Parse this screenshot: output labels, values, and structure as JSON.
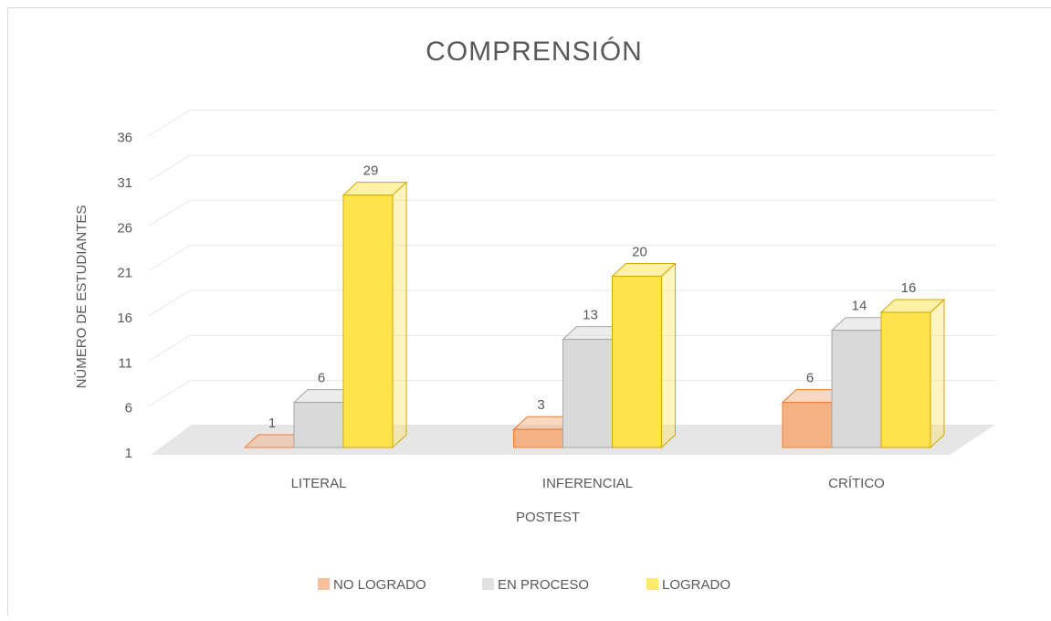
{
  "chart_data": {
    "type": "bar3d",
    "title": "COMPRENSIÓN",
    "x_label": "POSTEST",
    "y_label": "NÚMERO DE ESTUDIANTES",
    "categories": [
      "LITERAL",
      "INFERENCIAL",
      "CRÍTICO"
    ],
    "series": [
      {
        "name": "NO LOGRADO",
        "color": "#f4b183",
        "values": [
          1,
          3,
          6
        ]
      },
      {
        "name": "EN PROCESO",
        "color": "#d9d9d9",
        "values": [
          6,
          13,
          14
        ]
      },
      {
        "name": "LOGRADO",
        "color": "#ffe34d",
        "values": [
          29,
          20,
          16
        ]
      }
    ],
    "ylim": [
      1,
      36
    ],
    "yticks": [
      1,
      6,
      11,
      16,
      21,
      26,
      31,
      36
    ],
    "grid": true,
    "legend": "bottom"
  }
}
